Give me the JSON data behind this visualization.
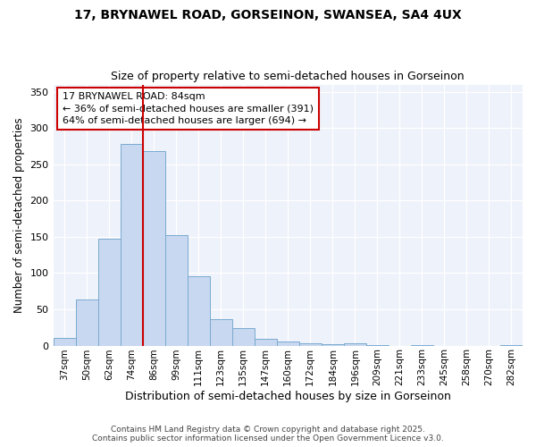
{
  "title1": "17, BRYNAWEL ROAD, GORSEINON, SWANSEA, SA4 4UX",
  "title2": "Size of property relative to semi-detached houses in Gorseinon",
  "xlabel": "Distribution of semi-detached houses by size in Gorseinon",
  "ylabel": "Number of semi-detached properties",
  "categories": [
    "37sqm",
    "50sqm",
    "62sqm",
    "74sqm",
    "86sqm",
    "99sqm",
    "111sqm",
    "123sqm",
    "135sqm",
    "147sqm",
    "160sqm",
    "172sqm",
    "184sqm",
    "196sqm",
    "209sqm",
    "221sqm",
    "233sqm",
    "245sqm",
    "258sqm",
    "270sqm",
    "282sqm"
  ],
  "values": [
    10,
    63,
    148,
    278,
    268,
    152,
    95,
    36,
    24,
    9,
    5,
    3,
    2,
    3,
    1,
    0,
    1,
    0,
    0,
    0,
    1
  ],
  "bar_color": "#c8d8f0",
  "bar_edge_color": "#7aaad0",
  "vline_index": 4,
  "vline_color": "#cc0000",
  "annotation_title": "17 BRYNAWEL ROAD: 84sqm",
  "annotation_line1": "← 36% of semi-detached houses are smaller (391)",
  "annotation_line2": "64% of semi-detached houses are larger (694) →",
  "annotation_box_color": "#ffffff",
  "annotation_box_edge": "#cc0000",
  "footer1": "Contains HM Land Registry data © Crown copyright and database right 2025.",
  "footer2": "Contains public sector information licensed under the Open Government Licence v3.0.",
  "plot_bg_color": "#eef2fa",
  "fig_bg_color": "#ffffff",
  "ylim": [
    0,
    360
  ],
  "yticks": [
    0,
    50,
    100,
    150,
    200,
    250,
    300,
    350
  ]
}
